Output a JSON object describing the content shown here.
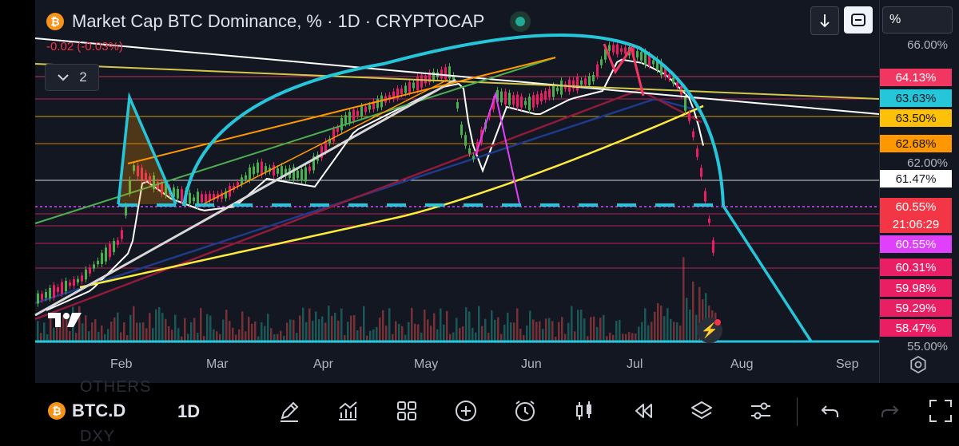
{
  "header": {
    "title": "Market Cap BTC Dominance, % · 1D · CRYPTOCAP",
    "change": "-0.02 (-0.03%)",
    "indicator_count": "2",
    "scale_mode_label": "%"
  },
  "colors": {
    "background": "#131722",
    "up": "#26a69a",
    "down": "#ef5350",
    "cyan": "#26c6da",
    "pink": "#f23645",
    "magenta": "#e040fb",
    "yellow": "#ffeb3b",
    "orange": "#ff9800"
  },
  "price_scale": {
    "ticks": [
      "66.00%",
      "62.00%",
      "55.00%"
    ]
  },
  "price_labels": [
    {
      "text": "64.13%",
      "bg": "#f23662",
      "fg": "#ffffff"
    },
    {
      "text": "63.63%",
      "bg": "#26c6da",
      "fg": "#131722"
    },
    {
      "text": "63.50%",
      "bg": "#ffc107",
      "fg": "#131722"
    },
    {
      "text": "62.68%",
      "bg": "#ff9800",
      "fg": "#131722"
    },
    {
      "text": "61.47%",
      "bg": "#ffffff",
      "fg": "#131722"
    },
    {
      "text": "60.55%",
      "bg": "#f23645",
      "fg": "#ffffff"
    },
    {
      "text": "21:06:29",
      "bg": "#f23645",
      "fg": "#ffffff"
    },
    {
      "text": "60.55%",
      "bg": "#e040fb",
      "fg": "#ffffff"
    },
    {
      "text": "60.31%",
      "bg": "#e91e63",
      "fg": "#ffffff"
    },
    {
      "text": "59.98%",
      "bg": "#e91e63",
      "fg": "#ffffff"
    },
    {
      "text": "59.29%",
      "bg": "#e91e63",
      "fg": "#ffffff"
    },
    {
      "text": "58.47%",
      "bg": "#e91e63",
      "fg": "#ffffff"
    }
  ],
  "time_axis": [
    "Feb",
    "Mar",
    "Apr",
    "May",
    "Jun",
    "Jul",
    "Aug",
    "Sep"
  ],
  "bottom_toolbar": {
    "symbol": "BTC.D",
    "timeframe": "1D",
    "ghost_above": "OTHERS",
    "ghost_below": "DXY",
    "tools": [
      "drawing-pen-icon",
      "indicators-icon",
      "templates-icon",
      "add-icon",
      "alert-clock-icon",
      "candles-icon",
      "replay-icon",
      "layers-icon",
      "settings-sliders-icon",
      "undo-icon",
      "redo-icon",
      "fullscreen-icon"
    ]
  }
}
